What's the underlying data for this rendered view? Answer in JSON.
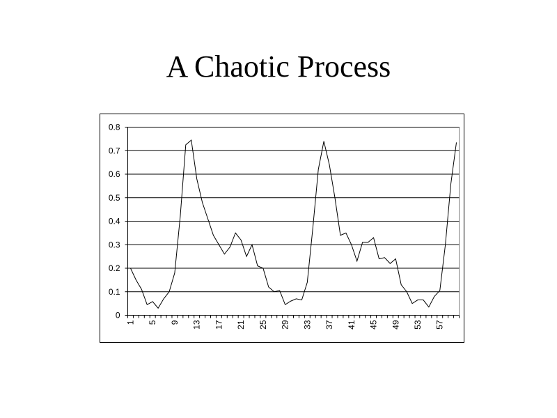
{
  "chart_data": {
    "type": "line",
    "title": "A Chaotic Process",
    "categories": [
      "1",
      null,
      null,
      null,
      "5",
      null,
      null,
      null,
      "9",
      null,
      null,
      null,
      "13",
      null,
      null,
      null,
      "17",
      null,
      null,
      null,
      "21",
      null,
      null,
      null,
      "25",
      null,
      null,
      null,
      "29",
      null,
      null,
      null,
      "33",
      null,
      null,
      null,
      "37",
      null,
      null,
      null,
      "41",
      null,
      null,
      null,
      "45",
      null,
      null,
      null,
      "49",
      null,
      null,
      null,
      "53",
      null,
      null,
      null,
      "57",
      null,
      null,
      null
    ],
    "values": [
      0.2,
      0.15,
      0.11,
      0.045,
      0.058,
      0.03,
      0.07,
      0.1,
      0.18,
      0.42,
      0.725,
      0.745,
      0.58,
      0.48,
      0.41,
      0.34,
      0.3,
      0.26,
      0.29,
      0.35,
      0.32,
      0.25,
      0.3,
      0.21,
      0.2,
      0.12,
      0.1,
      0.105,
      0.045,
      0.06,
      0.07,
      0.065,
      0.14,
      0.37,
      0.62,
      0.74,
      0.64,
      0.5,
      0.34,
      0.35,
      0.3,
      0.23,
      0.31,
      0.31,
      0.33,
      0.24,
      0.245,
      0.22,
      0.24,
      0.13,
      0.1,
      0.05,
      0.065,
      0.065,
      0.035,
      0.08,
      0.105,
      0.3,
      0.56,
      0.735
    ],
    "color": "#000000",
    "ylim": [
      0,
      0.8
    ],
    "yticks": [
      0,
      0.1,
      0.2,
      0.3,
      0.4,
      0.5,
      0.6,
      0.7,
      0.8
    ],
    "grid": true
  }
}
